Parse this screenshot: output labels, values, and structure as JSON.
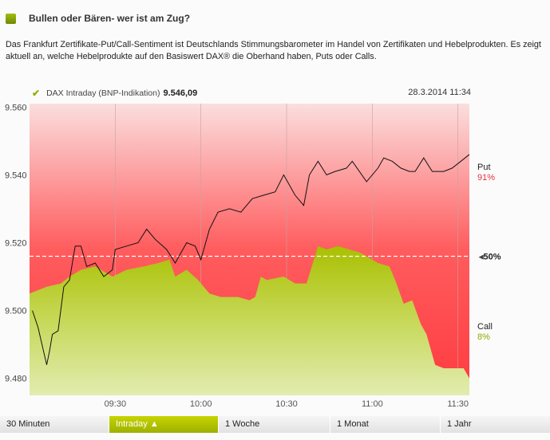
{
  "header": {
    "title": "Bullen oder Bären- wer ist am Zug?"
  },
  "intro": {
    "line1": "Das Frankfurt Zertifikate-Put/Call-Sentiment ist Deutschlands Stimmungsbarometer im Handel von Zertifikaten und Hebelprodukten. Es zeigt",
    "line2": "aktuell an, welche Hebelprodukte auf den Basiswert DAX® die Oberhand haben, Puts oder Calls."
  },
  "legend": {
    "label": "DAX Intraday (BNP-Indikation)",
    "value": "9.546,09",
    "date": "28.3.2014 11:34"
  },
  "side": {
    "put_label": "Put",
    "put_value": "91%",
    "mid_label": "50%",
    "call_label": "Call",
    "call_value": "8%"
  },
  "colors": {
    "put": "#e8323c",
    "call": "#8fa800",
    "accent": "#b4c600"
  },
  "tabs": [
    {
      "label": "30 Minuten"
    },
    {
      "label": "Intraday",
      "active": true
    },
    {
      "label": "1 Woche"
    },
    {
      "label": "1 Monat"
    },
    {
      "label": "1 Jahr"
    }
  ],
  "chart_data": {
    "type": "line",
    "xlim": [
      "09:00",
      "11:34"
    ],
    "ylim": [
      9475,
      9561
    ],
    "y_ticks": [
      {
        "v": 9560,
        "label": "9.560"
      },
      {
        "v": 9540,
        "label": "9.540"
      },
      {
        "v": 9520,
        "label": "9.520"
      },
      {
        "v": 9500,
        "label": "9.500"
      },
      {
        "v": 9480,
        "label": "9.480"
      }
    ],
    "x_ticks": [
      "09:30",
      "10:00",
      "10:30",
      "11:00",
      "11:30"
    ],
    "fifty_percent_level": 9516,
    "dax": [
      [
        "09:01",
        9500
      ],
      [
        "09:03",
        9495
      ],
      [
        "09:06",
        9484
      ],
      [
        "09:07",
        9488
      ],
      [
        "09:08",
        9493
      ],
      [
        "09:10",
        9494
      ],
      [
        "09:12",
        9507
      ],
      [
        "09:14",
        9509
      ],
      [
        "09:16",
        9519
      ],
      [
        "09:18",
        9519
      ],
      [
        "09:20",
        9513
      ],
      [
        "09:23",
        9514
      ],
      [
        "09:26",
        9510
      ],
      [
        "09:29",
        9512
      ],
      [
        "09:30",
        9518
      ],
      [
        "09:34",
        9519
      ],
      [
        "09:38",
        9520
      ],
      [
        "09:41",
        9524
      ],
      [
        "09:44",
        9521
      ],
      [
        "09:48",
        9518
      ],
      [
        "09:51",
        9514
      ],
      [
        "09:55",
        9520
      ],
      [
        "09:58",
        9519
      ],
      [
        "10:00",
        9515
      ],
      [
        "10:03",
        9524
      ],
      [
        "10:06",
        9529
      ],
      [
        "10:10",
        9530
      ],
      [
        "10:14",
        9529
      ],
      [
        "10:18",
        9533
      ],
      [
        "10:22",
        9534
      ],
      [
        "10:26",
        9535
      ],
      [
        "10:29",
        9540
      ],
      [
        "10:33",
        9534
      ],
      [
        "10:36",
        9531
      ],
      [
        "10:38",
        9540
      ],
      [
        "10:41",
        9544
      ],
      [
        "10:44",
        9540
      ],
      [
        "10:47",
        9541
      ],
      [
        "10:51",
        9542
      ],
      [
        "10:53",
        9544
      ],
      [
        "10:58",
        9538
      ],
      [
        "11:02",
        9542
      ],
      [
        "11:04",
        9545
      ],
      [
        "11:07",
        9544
      ],
      [
        "11:10",
        9542
      ],
      [
        "11:13",
        9541
      ],
      [
        "11:15",
        9541
      ],
      [
        "11:18",
        9545
      ],
      [
        "11:21",
        9541
      ],
      [
        "11:25",
        9541
      ],
      [
        "11:28",
        9542
      ],
      [
        "11:34",
        9546
      ]
    ],
    "call_area": [
      [
        "09:00",
        9505
      ],
      [
        "09:06",
        9507
      ],
      [
        "09:11",
        9508
      ],
      [
        "09:14",
        9510
      ],
      [
        "09:18",
        9512
      ],
      [
        "09:23",
        9513
      ],
      [
        "09:29",
        9510
      ],
      [
        "09:34",
        9512
      ],
      [
        "09:40",
        9513
      ],
      [
        "09:45",
        9514
      ],
      [
        "09:49",
        9515
      ],
      [
        "09:51",
        9510
      ],
      [
        "09:55",
        9512
      ],
      [
        "09:59",
        9509
      ],
      [
        "10:03",
        9505
      ],
      [
        "10:07",
        9504
      ],
      [
        "10:13",
        9504
      ],
      [
        "10:17",
        9503
      ],
      [
        "10:19",
        9504
      ],
      [
        "10:21",
        9510
      ],
      [
        "10:23",
        9509
      ],
      [
        "10:29",
        9510
      ],
      [
        "10:33",
        9508
      ],
      [
        "10:37",
        9508
      ],
      [
        "10:41",
        9519
      ],
      [
        "10:44",
        9518
      ],
      [
        "10:48",
        9519
      ],
      [
        "10:52",
        9518
      ],
      [
        "10:56",
        9517
      ],
      [
        "11:02",
        9514
      ],
      [
        "11:06",
        9513
      ],
      [
        "11:08",
        9509
      ],
      [
        "11:11",
        9502
      ],
      [
        "11:14",
        9503
      ],
      [
        "11:17",
        9496
      ],
      [
        "11:19",
        9493
      ],
      [
        "11:22",
        9484
      ],
      [
        "11:25",
        9483
      ],
      [
        "11:32",
        9483
      ],
      [
        "11:34",
        9480
      ]
    ]
  }
}
